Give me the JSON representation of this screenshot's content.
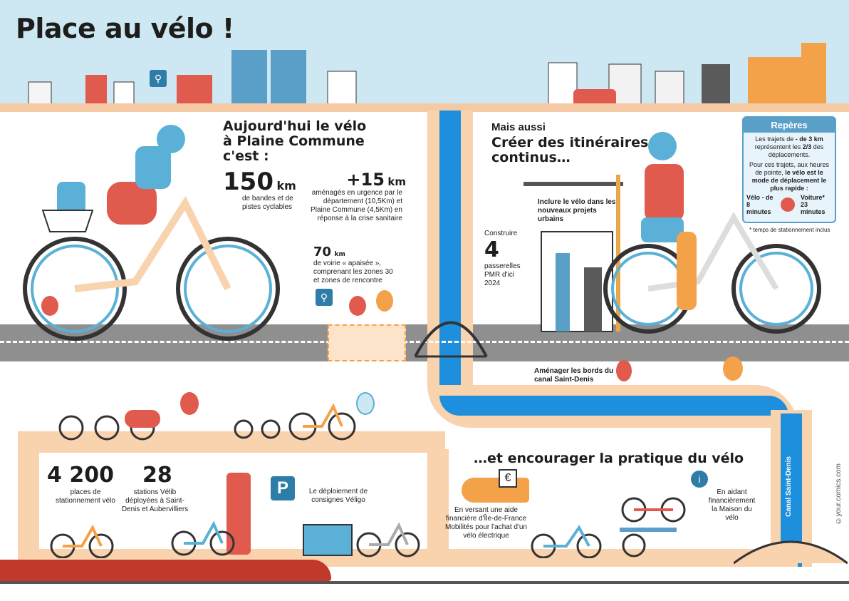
{
  "title": "Place au vélo !",
  "section_today": {
    "heading": "Aujourd'hui le vélo à Plaine Commune c'est :",
    "stat1_value": "150",
    "stat1_unit": "km",
    "stat1_desc": "de bandes et de pistes cyclables",
    "stat2_value": "+15",
    "stat2_unit": "km",
    "stat2_desc": "aménagés en urgence par le département (10,5Km) et Plaine Commune (4,5Km) en réponse à la crise sanitaire",
    "stat3_value": "70",
    "stat3_unit": "km",
    "stat3_desc": "de voirie « apaisée », comprenant les zones 30 et zones de rencontre"
  },
  "section_also": {
    "line1": "Mais aussi",
    "heading": "Créer des itinéraires continus…",
    "urban": "Inclure le vélo dans les nouveaux projets urbains",
    "build_label": "Construire",
    "build_value": "4",
    "build_desc": "passerelles PMR d'ici 2024",
    "canal_desc": "Aménager les bords du canal Saint-Denis"
  },
  "reperes": {
    "heading": "Repères",
    "text1_pre": "Les trajets de ",
    "text1_bold": "- de 3 km",
    "text1_mid": " représentent les ",
    "text1_bold2": "2/3",
    "text1_post": " des déplacements.",
    "text2_pre": "Pour ces trajets, aux heures de pointe, ",
    "text2_bold": "le vélo est le mode de déplacement le plus rapide :",
    "velo": "Vélo - de 8 minutes",
    "voiture": "Voiture* 23 minutes",
    "note": "* temps de stationnement inclus"
  },
  "section_parking": {
    "stat1_value": "4 200",
    "stat1_desc": "places de stationnement vélo",
    "stat2_value": "28",
    "stat2_desc": "stations Vélib déployées à Saint-Denis et Aubervilliers",
    "veligo": "Le déploiement de consignes Véligo",
    "veligo_bold": "Véligo"
  },
  "section_encourage": {
    "heading": "…et encourager la pratique du vélo",
    "aid": "En versant une aide financière d'Île-de-France Mobilités pour l'achat d'un vélo électrique",
    "maison": "En aidant financièrement la Maison du vélo"
  },
  "canal_label": "Canal Saint-Denis",
  "credit": "©your.comics.com",
  "colors": {
    "sky": "#cde8f3",
    "canal": "#1e8fdc",
    "path": "#f9d2ae",
    "road": "#8f8f8f",
    "accent_red": "#e05a4e",
    "accent_blue": "#5a9fc8"
  }
}
